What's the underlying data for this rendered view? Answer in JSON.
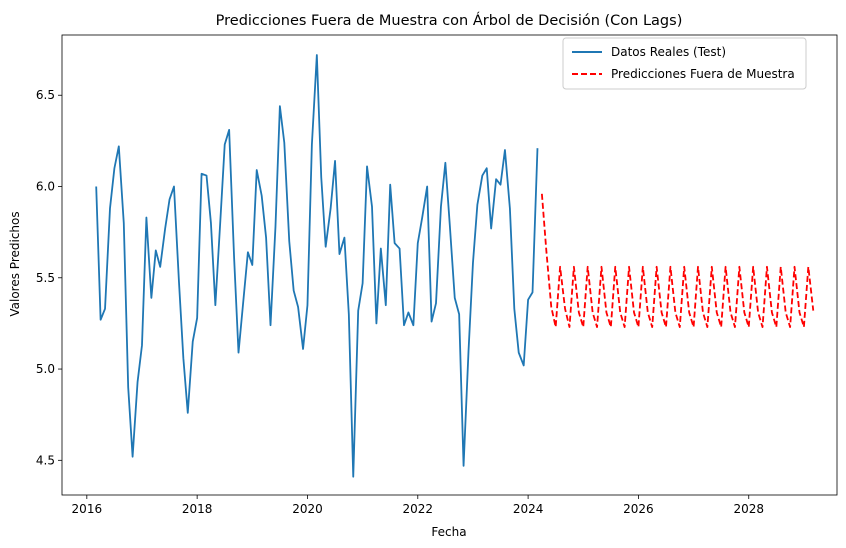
{
  "chart_data": {
    "type": "line",
    "title": "Predicciones Fuera de Muestra con Árbol de Decisión (Con Lags)",
    "xlabel": "Fecha",
    "ylabel": "Valores Predichos",
    "xlim": [
      2015.55,
      2029.6
    ],
    "ylim": [
      4.31,
      6.83
    ],
    "x_ticks": [
      2016,
      2018,
      2020,
      2022,
      2024,
      2026,
      2028
    ],
    "y_ticks": [
      4.5,
      5.0,
      5.5,
      6.0,
      6.5
    ],
    "grid": false,
    "legend_position": "upper right",
    "series": [
      {
        "name": "Datos Reales (Test)",
        "color": "#1f77b4",
        "style": "solid",
        "x": [
          2016.17,
          2016.25,
          2016.33,
          2016.42,
          2016.5,
          2016.58,
          2016.67,
          2016.75,
          2016.83,
          2016.92,
          2017.0,
          2017.08,
          2017.17,
          2017.25,
          2017.33,
          2017.42,
          2017.5,
          2017.58,
          2017.67,
          2017.75,
          2017.83,
          2017.92,
          2018.0,
          2018.08,
          2018.17,
          2018.25,
          2018.33,
          2018.42,
          2018.5,
          2018.58,
          2018.67,
          2018.75,
          2018.83,
          2018.92,
          2019.0,
          2019.08,
          2019.17,
          2019.25,
          2019.33,
          2019.42,
          2019.5,
          2019.58,
          2019.67,
          2019.75,
          2019.83,
          2019.92,
          2020.0,
          2020.08,
          2020.17,
          2020.25,
          2020.33,
          2020.42,
          2020.5,
          2020.58,
          2020.67,
          2020.75,
          2020.83,
          2020.92,
          2021.0,
          2021.08,
          2021.17,
          2021.25,
          2021.33,
          2021.42,
          2021.5,
          2021.58,
          2021.67,
          2021.75,
          2021.83,
          2021.92,
          2022.0,
          2022.08,
          2022.17,
          2022.25,
          2022.33,
          2022.42,
          2022.5,
          2022.58,
          2022.67,
          2022.75,
          2022.83,
          2022.92,
          2023.0,
          2023.08,
          2023.17,
          2023.25,
          2023.33,
          2023.42,
          2023.5,
          2023.58,
          2023.67,
          2023.75,
          2023.83,
          2023.92,
          2024.0,
          2024.08,
          2024.17
        ],
        "y": [
          6.0,
          5.27,
          5.33,
          5.88,
          6.1,
          6.22,
          5.8,
          4.9,
          4.52,
          4.93,
          5.13,
          5.83,
          5.39,
          5.65,
          5.56,
          5.77,
          5.93,
          6.0,
          5.48,
          5.06,
          4.76,
          5.15,
          5.28,
          6.07,
          6.06,
          5.8,
          5.35,
          5.81,
          6.23,
          6.31,
          5.61,
          5.09,
          5.35,
          5.64,
          5.57,
          6.09,
          5.95,
          5.72,
          5.24,
          5.78,
          6.44,
          6.24,
          5.7,
          5.43,
          5.34,
          5.11,
          5.35,
          6.23,
          6.72,
          6.05,
          5.67,
          5.88,
          6.14,
          5.63,
          5.72,
          5.3,
          4.41,
          5.32,
          5.47,
          6.11,
          5.89,
          5.25,
          5.66,
          5.35,
          6.01,
          5.69,
          5.66,
          5.24,
          5.31,
          5.24,
          5.69,
          5.83,
          6.0,
          5.26,
          5.36,
          5.89,
          6.13,
          5.79,
          5.39,
          5.3,
          4.47,
          5.1,
          5.58,
          5.9,
          6.06,
          6.1,
          5.77,
          6.04,
          6.01,
          6.2,
          5.88,
          5.33,
          5.09,
          5.02,
          5.38,
          5.42,
          6.21
        ]
      },
      {
        "name": "Predicciones Fuera de Muestra",
        "color": "#ff0000",
        "style": "dashed",
        "x": [
          2024.25,
          2024.33,
          2024.42,
          2024.5,
          2024.58,
          2024.67,
          2024.75,
          2024.83,
          2024.92,
          2025.0,
          2025.08,
          2025.17,
          2025.25,
          2025.33,
          2025.42,
          2025.5,
          2025.58,
          2025.67,
          2025.75,
          2025.83,
          2025.92,
          2026.0,
          2026.08,
          2026.17,
          2026.25,
          2026.33,
          2026.42,
          2026.5,
          2026.58,
          2026.67,
          2026.75,
          2026.83,
          2026.92,
          2027.0,
          2027.08,
          2027.17,
          2027.25,
          2027.33,
          2027.42,
          2027.5,
          2027.58,
          2027.67,
          2027.75,
          2027.83,
          2027.92,
          2028.0,
          2028.08,
          2028.17,
          2028.25,
          2028.33,
          2028.42,
          2028.5,
          2028.58,
          2028.67,
          2028.75,
          2028.83,
          2028.92,
          2029.0,
          2029.08,
          2029.17
        ],
        "y": [
          5.96,
          5.65,
          5.34,
          5.23,
          5.56,
          5.33,
          5.23,
          5.56,
          5.31,
          5.23,
          5.56,
          5.31,
          5.23,
          5.56,
          5.31,
          5.23,
          5.56,
          5.31,
          5.23,
          5.56,
          5.31,
          5.23,
          5.56,
          5.31,
          5.23,
          5.56,
          5.31,
          5.23,
          5.56,
          5.31,
          5.23,
          5.56,
          5.31,
          5.23,
          5.56,
          5.31,
          5.23,
          5.56,
          5.31,
          5.23,
          5.56,
          5.31,
          5.23,
          5.56,
          5.31,
          5.23,
          5.56,
          5.31,
          5.23,
          5.56,
          5.31,
          5.23,
          5.56,
          5.31,
          5.23,
          5.56,
          5.31,
          5.23,
          5.56,
          5.32
        ]
      }
    ]
  }
}
